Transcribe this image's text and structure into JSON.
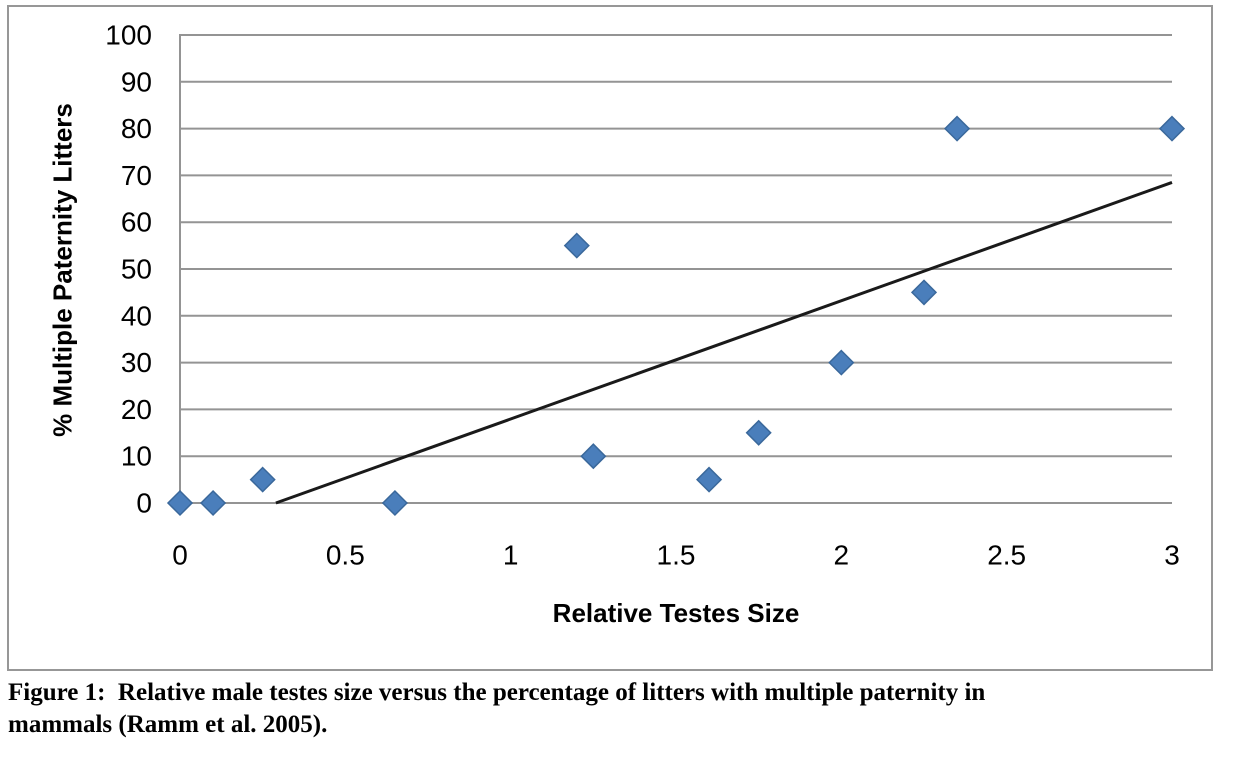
{
  "figure": {
    "caption_line1": "Figure 1:  Relative male testes size versus the percentage of litters with multiple paternity in",
    "caption_line2": "mammals (Ramm et al. 2005).",
    "border_color": "#979797"
  },
  "chart_data": {
    "type": "scatter",
    "title": "",
    "xlabel": "Relative Testes Size",
    "ylabel": "% Multiple Paternity Litters",
    "xlim": [
      0,
      3
    ],
    "ylim": [
      0,
      100
    ],
    "xticks": [
      0,
      0.5,
      1,
      1.5,
      2,
      2.5,
      3
    ],
    "yticks": [
      0,
      10,
      20,
      30,
      40,
      50,
      60,
      70,
      80,
      90,
      100
    ],
    "grid": "horizontal-only",
    "legend_position": "none",
    "gridline_color": "#949494",
    "axis_color": "#949494",
    "marker": {
      "shape": "diamond",
      "fill": "#4A7EBB",
      "stroke": "#3A689B"
    },
    "points": [
      {
        "x": 0.0,
        "y": 0
      },
      {
        "x": 0.1,
        "y": 0
      },
      {
        "x": 0.25,
        "y": 5
      },
      {
        "x": 0.65,
        "y": 0
      },
      {
        "x": 1.2,
        "y": 55
      },
      {
        "x": 1.25,
        "y": 10
      },
      {
        "x": 1.6,
        "y": 5
      },
      {
        "x": 1.75,
        "y": 15
      },
      {
        "x": 2.0,
        "y": 30
      },
      {
        "x": 2.25,
        "y": 45
      },
      {
        "x": 2.35,
        "y": 80
      },
      {
        "x": 3.0,
        "y": 80
      }
    ],
    "trendline": {
      "x1": 0.29,
      "y1": 0,
      "x2": 3.0,
      "y2": 68.5,
      "color": "#1a1a1a"
    }
  }
}
